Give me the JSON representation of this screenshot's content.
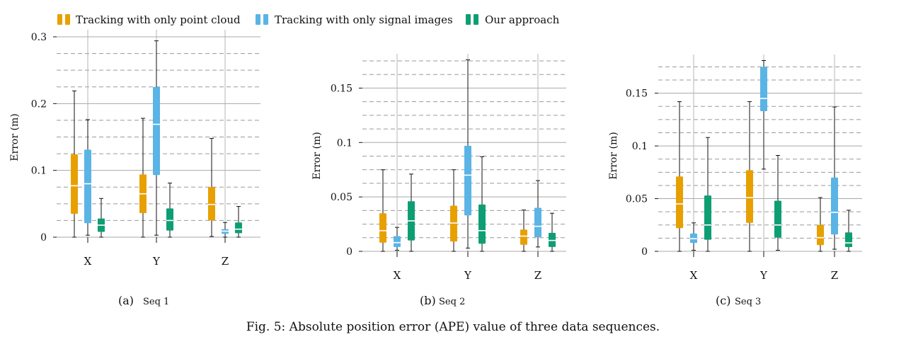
{
  "legend": [
    {
      "label": "Tracking with only point cloud",
      "color": "#E8A000"
    },
    {
      "label": "Tracking with only signal images",
      "color": "#5AB4E5"
    },
    {
      "label": "Our approach",
      "color": "#0E9E74"
    }
  ],
  "caption": "Fig. 5: Absolute position error (APE) value of three data sequences.",
  "chart_data": [
    {
      "type": "box",
      "subfigure": "(a)",
      "title": "Seq 1",
      "ylabel": "Error (m)",
      "ylim": [
        0,
        0.3
      ],
      "yticks": [
        0,
        0.1,
        0.2,
        0.3
      ],
      "yticklabels": [
        "0",
        "0.1",
        "0.2",
        "0.3"
      ],
      "minor_step": 0.025,
      "categories": [
        "X",
        "Y",
        "Z"
      ],
      "series": [
        {
          "name": "Tracking with only point cloud",
          "boxes": [
            {
              "min": 0.0,
              "q1": 0.035,
              "median": 0.077,
              "q3": 0.124,
              "max": 0.219
            },
            {
              "min": 0.0,
              "q1": 0.036,
              "median": 0.065,
              "q3": 0.094,
              "max": 0.178
            },
            {
              "min": 0.001,
              "q1": 0.025,
              "median": 0.049,
              "q3": 0.075,
              "max": 0.148
            }
          ]
        },
        {
          "name": "Tracking with only signal images",
          "boxes": [
            {
              "min": 0.003,
              "q1": 0.021,
              "median": 0.08,
              "q3": 0.131,
              "max": 0.176
            },
            {
              "min": 0.003,
              "q1": 0.093,
              "median": 0.169,
              "q3": 0.225,
              "max": 0.294
            },
            {
              "min": 0.0,
              "q1": 0.005,
              "median": 0.009,
              "q3": 0.012,
              "max": 0.022
            }
          ]
        },
        {
          "name": "Our approach",
          "boxes": [
            {
              "min": 0.0,
              "q1": 0.008,
              "median": 0.018,
              "q3": 0.028,
              "max": 0.058
            },
            {
              "min": 0.0,
              "q1": 0.01,
              "median": 0.025,
              "q3": 0.043,
              "max": 0.081
            },
            {
              "min": 0.0,
              "q1": 0.006,
              "median": 0.012,
              "q3": 0.022,
              "max": 0.046
            }
          ]
        }
      ]
    },
    {
      "type": "box",
      "subfigure": "(b)",
      "title": "Seq 2",
      "ylabel": "Error (m)",
      "ylim": [
        0,
        0.175
      ],
      "yticks": [
        0,
        0.05,
        0.1,
        0.15
      ],
      "yticklabels": [
        "0",
        "0.05",
        "0.1",
        "0.15"
      ],
      "minor_step": 0.0125,
      "categories": [
        "X",
        "Y",
        "Z"
      ],
      "series": [
        {
          "name": "Tracking with only point cloud",
          "boxes": [
            {
              "min": 0.0,
              "q1": 0.008,
              "median": 0.019,
              "q3": 0.035,
              "max": 0.075
            },
            {
              "min": 0.0,
              "q1": 0.009,
              "median": 0.026,
              "q3": 0.042,
              "max": 0.075
            },
            {
              "min": 0.0,
              "q1": 0.006,
              "median": 0.014,
              "q3": 0.02,
              "max": 0.038
            }
          ]
        },
        {
          "name": "Tracking with only signal images",
          "boxes": [
            {
              "min": 0.001,
              "q1": 0.004,
              "median": 0.008,
              "q3": 0.014,
              "max": 0.022
            },
            {
              "min": 0.003,
              "q1": 0.033,
              "median": 0.07,
              "q3": 0.097,
              "max": 0.176
            },
            {
              "min": 0.004,
              "q1": 0.013,
              "median": 0.023,
              "q3": 0.04,
              "max": 0.065
            }
          ]
        },
        {
          "name": "Our approach",
          "boxes": [
            {
              "min": 0.0,
              "q1": 0.01,
              "median": 0.028,
              "q3": 0.046,
              "max": 0.071
            },
            {
              "min": 0.0,
              "q1": 0.007,
              "median": 0.019,
              "q3": 0.043,
              "max": 0.087
            },
            {
              "min": 0.0,
              "q1": 0.004,
              "median": 0.01,
              "q3": 0.017,
              "max": 0.035
            }
          ]
        }
      ]
    },
    {
      "type": "box",
      "subfigure": "(c)",
      "title": "Seq 3",
      "ylabel": "Error (m)",
      "ylim": [
        0,
        0.18
      ],
      "yticks": [
        0,
        0.05,
        0.1,
        0.15
      ],
      "yticklabels": [
        "0",
        "0.05",
        "0.1",
        "0.15"
      ],
      "minor_step": 0.0125,
      "categories": [
        "X",
        "Y",
        "Z"
      ],
      "series": [
        {
          "name": "Tracking with only point cloud",
          "boxes": [
            {
              "min": 0.0,
              "q1": 0.022,
              "median": 0.045,
              "q3": 0.071,
              "max": 0.142
            },
            {
              "min": 0.0,
              "q1": 0.027,
              "median": 0.051,
              "q3": 0.077,
              "max": 0.142
            },
            {
              "min": 0.0,
              "q1": 0.006,
              "median": 0.013,
              "q3": 0.025,
              "max": 0.051
            }
          ]
        },
        {
          "name": "Tracking with only signal images",
          "boxes": [
            {
              "min": 0.001,
              "q1": 0.008,
              "median": 0.012,
              "q3": 0.017,
              "max": 0.027
            },
            {
              "min": 0.078,
              "q1": 0.133,
              "median": 0.145,
              "q3": 0.175,
              "max": 0.181
            },
            {
              "min": 0.002,
              "q1": 0.016,
              "median": 0.037,
              "q3": 0.07,
              "max": 0.137
            }
          ]
        },
        {
          "name": "Our approach",
          "boxes": [
            {
              "min": 0.0,
              "q1": 0.011,
              "median": 0.025,
              "q3": 0.053,
              "max": 0.108
            },
            {
              "min": 0.001,
              "q1": 0.013,
              "median": 0.025,
              "q3": 0.048,
              "max": 0.091
            },
            {
              "min": 0.0,
              "q1": 0.004,
              "median": 0.008,
              "q3": 0.018,
              "max": 0.039
            }
          ]
        }
      ]
    }
  ]
}
